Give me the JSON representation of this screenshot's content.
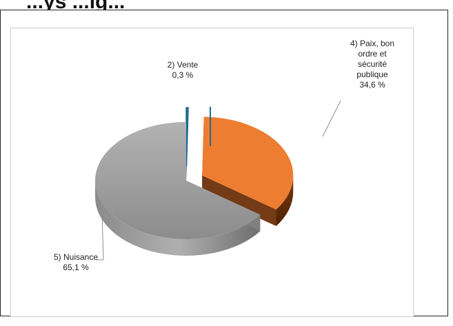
{
  "header": {
    "visible_fragment": "...ys ...ig..."
  },
  "chart_data": {
    "type": "pie",
    "variant": "3d-exploded",
    "title": "",
    "slices": [
      {
        "label_lines": [
          "2) Vente",
          "0,3 %"
        ],
        "value": 0.3,
        "color": "#1f6b8f",
        "side_color": "#154a63"
      },
      {
        "label_lines": [
          "4) Paix, bon",
          "ordre et",
          "sécurité",
          "publique",
          "34,6 %"
        ],
        "value": 34.6,
        "color": "#ed7d31",
        "side_color": "#6b300a"
      },
      {
        "label_lines": [
          "5) Nuisance",
          "65,1 %"
        ],
        "value": 65.1,
        "color": "#a6a6a6",
        "side_color": "#7f7f7f"
      }
    ],
    "legend": "none"
  }
}
